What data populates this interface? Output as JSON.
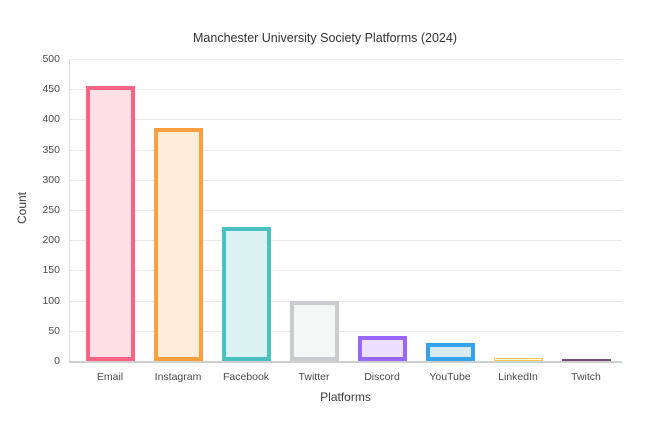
{
  "chart_data": {
    "type": "bar",
    "title": "Manchester University Society Platforms (2024)",
    "xlabel": "Platforms",
    "ylabel": "Count",
    "ylim": [
      0,
      500
    ],
    "ytick_step": 50,
    "grid": true,
    "legend": "none",
    "categories": [
      "Email",
      "Instagram",
      "Facebook",
      "Twitter",
      "Discord",
      "YouTube",
      "LinkedIn",
      "Twitch"
    ],
    "values": [
      456,
      385,
      222,
      100,
      42,
      30,
      5,
      2
    ],
    "bar_border_colors": [
      "#FF6384",
      "#FF9F40",
      "#4BC0C0",
      "#C9CBCF",
      "#9966FF",
      "#36A2EB",
      "#FFCD56",
      "#7B4A7B"
    ],
    "bar_fill_colors": [
      "#FFE0E7",
      "#FFECD9",
      "#DBF2F2",
      "#F4F5F5",
      "#EBE0FF",
      "#D7ECFB",
      "#FFF5DD",
      "#E4D6E4"
    ],
    "background_color": "#FFFFFF",
    "gridline_color": "#EAEAEA",
    "axis_line_color": "#CFCFCF",
    "text_color": "#333333"
  }
}
